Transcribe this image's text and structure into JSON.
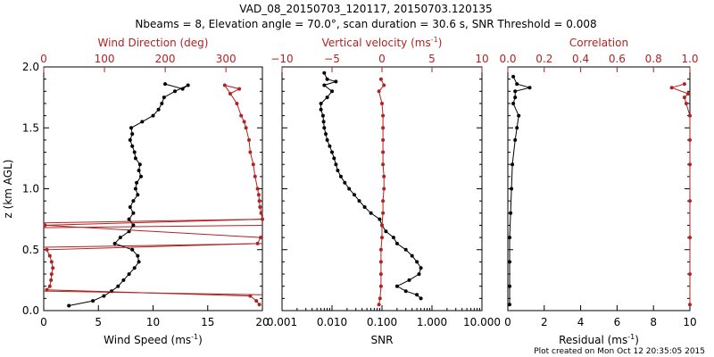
{
  "title": {
    "line1": "VAD_08_20150703_120117, 20150703.120135",
    "line2": "Nbeams = 8, Elevation angle = 70.0°, scan duration = 30.6 s, SNR Threshold = 0.008"
  },
  "footer": "Plot created on Mon Oct 12 20:35:05 2015",
  "colors": {
    "primary": "#000000",
    "secondary": "#b22222"
  },
  "chart_data": [
    {
      "type": "scatter",
      "panel": "wind",
      "ylabel": "z (km AGL)",
      "ylim": [
        0.0,
        2.0
      ],
      "yticks": [
        0.0,
        0.5,
        1.0,
        1.5,
        2.0
      ],
      "ytick_labels": [
        "0.0",
        "0.5",
        "1.0",
        "1.5",
        "2.0"
      ],
      "xlabel": "Wind Speed (ms",
      "xlabel_sup": "-1",
      "xlabel_tail": ")",
      "xlim": [
        0,
        20
      ],
      "xticks": [
        0,
        5,
        10,
        15,
        20
      ],
      "xtick_labels": [
        "0",
        "5",
        "10",
        "15",
        "20"
      ],
      "top_label": "Wind Direction (deg)",
      "top_lim": [
        0,
        360
      ],
      "top_ticks": [
        0,
        100,
        200,
        300
      ],
      "top_tick_labels": [
        "0",
        "100",
        "200",
        "300"
      ],
      "series": [
        {
          "name": "Wind Speed",
          "axis": "bottom",
          "color": "#000000",
          "points": [
            [
              2.3,
              0.04
            ],
            [
              4.5,
              0.08
            ],
            [
              5.5,
              0.12
            ],
            [
              6.2,
              0.16
            ],
            [
              6.8,
              0.2
            ],
            [
              7.3,
              0.25
            ],
            [
              7.8,
              0.3
            ],
            [
              8.3,
              0.35
            ],
            [
              8.7,
              0.4
            ],
            [
              8.6,
              0.45
            ],
            [
              8.1,
              0.5
            ],
            [
              6.5,
              0.55
            ],
            [
              7.0,
              0.6
            ],
            [
              7.8,
              0.65
            ],
            [
              8.2,
              0.7
            ],
            [
              7.8,
              0.75
            ],
            [
              8.2,
              0.8
            ],
            [
              7.9,
              0.85
            ],
            [
              8.2,
              0.9
            ],
            [
              8.6,
              0.95
            ],
            [
              8.4,
              1.0
            ],
            [
              8.5,
              1.05
            ],
            [
              8.9,
              1.1
            ],
            [
              8.7,
              1.15
            ],
            [
              8.8,
              1.2
            ],
            [
              8.4,
              1.25
            ],
            [
              8.3,
              1.3
            ],
            [
              8.1,
              1.35
            ],
            [
              7.9,
              1.4
            ],
            [
              8.1,
              1.45
            ],
            [
              8.0,
              1.5
            ],
            [
              9.0,
              1.55
            ],
            [
              10.0,
              1.6
            ],
            [
              10.5,
              1.65
            ],
            [
              10.8,
              1.7
            ],
            [
              11.0,
              1.75
            ],
            [
              12.0,
              1.8
            ],
            [
              13.2,
              1.85
            ],
            [
              12.7,
              1.82
            ],
            [
              11.1,
              1.86
            ]
          ]
        },
        {
          "name": "Wind Direction",
          "axis": "top",
          "color": "#b22222",
          "points": [
            [
              355,
              0.05
            ],
            [
              350,
              0.08
            ],
            [
              340,
              0.12
            ],
            [
              5,
              0.17
            ],
            [
              10,
              0.2
            ],
            [
              12,
              0.25
            ],
            [
              13,
              0.3
            ],
            [
              15,
              0.35
            ],
            [
              13,
              0.4
            ],
            [
              10,
              0.45
            ],
            [
              5,
              0.5
            ],
            [
              352,
              0.55
            ],
            [
              357,
              0.6
            ],
            [
              2,
              0.7
            ],
            [
              360,
              0.75
            ],
            [
              358,
              0.8
            ],
            [
              356,
              0.85
            ],
            [
              355,
              0.9
            ],
            [
              354,
              0.95
            ],
            [
              352,
              1.0
            ],
            [
              348,
              1.1
            ],
            [
              345,
              1.2
            ],
            [
              340,
              1.3
            ],
            [
              338,
              1.4
            ],
            [
              333,
              1.5
            ],
            [
              330,
              1.55
            ],
            [
              325,
              1.6
            ],
            [
              318,
              1.7
            ],
            [
              298,
              1.85
            ],
            [
              322,
              1.82
            ],
            [
              307,
              1.78
            ]
          ]
        }
      ],
      "wrap_lines": [
        [
          0.0,
          0.16,
          20.0,
          0.13
        ],
        [
          0.0,
          0.52,
          20.0,
          0.55
        ],
        [
          0.0,
          0.68,
          20.0,
          0.7
        ],
        [
          0.0,
          0.72,
          20.0,
          0.75
        ]
      ]
    },
    {
      "type": "scatter",
      "panel": "snr",
      "ylim": [
        0.0,
        2.0
      ],
      "xlabel": "SNR",
      "xscale": "log",
      "xlim": [
        0.001,
        10.0
      ],
      "xticks": [
        0.001,
        0.01,
        0.1,
        1.0,
        10.0
      ],
      "xtick_labels": [
        "0.001",
        "0.010",
        "0.100",
        "1.000",
        "10.000"
      ],
      "top_label": "Vertical velocity (ms",
      "top_label_sup": "-1",
      "top_label_tail": ")",
      "top_lim": [
        -10,
        10
      ],
      "top_ticks": [
        -10,
        -5,
        0,
        5,
        10
      ],
      "top_tick_labels": [
        "−10",
        "−5",
        "0",
        "5",
        "10"
      ],
      "series": [
        {
          "name": "SNR",
          "axis": "bottom",
          "color": "#000000",
          "points": [
            [
              0.6,
              0.1
            ],
            [
              0.5,
              0.13
            ],
            [
              0.3,
              0.16
            ],
            [
              0.2,
              0.2
            ],
            [
              0.35,
              0.25
            ],
            [
              0.55,
              0.3
            ],
            [
              0.6,
              0.35
            ],
            [
              0.5,
              0.4
            ],
            [
              0.4,
              0.45
            ],
            [
              0.3,
              0.5
            ],
            [
              0.2,
              0.55
            ],
            [
              0.17,
              0.6
            ],
            [
              0.12,
              0.65
            ],
            [
              0.1,
              0.7
            ],
            [
              0.09,
              0.75
            ],
            [
              0.06,
              0.8
            ],
            [
              0.045,
              0.85
            ],
            [
              0.035,
              0.9
            ],
            [
              0.028,
              0.95
            ],
            [
              0.022,
              1.0
            ],
            [
              0.018,
              1.05
            ],
            [
              0.015,
              1.1
            ],
            [
              0.013,
              1.15
            ],
            [
              0.012,
              1.2
            ],
            [
              0.011,
              1.25
            ],
            [
              0.01,
              1.3
            ],
            [
              0.009,
              1.35
            ],
            [
              0.008,
              1.4
            ],
            [
              0.0075,
              1.45
            ],
            [
              0.007,
              1.5
            ],
            [
              0.0068,
              1.55
            ],
            [
              0.0066,
              1.6
            ],
            [
              0.006,
              1.65
            ],
            [
              0.006,
              1.7
            ],
            [
              0.008,
              1.75
            ],
            [
              0.01,
              1.8
            ],
            [
              0.007,
              1.85
            ],
            [
              0.012,
              1.88
            ],
            [
              0.008,
              1.9
            ],
            [
              0.007,
              1.95
            ]
          ]
        },
        {
          "name": "Vertical velocity",
          "axis": "top",
          "color": "#b22222",
          "points": [
            [
              -0.3,
              0.05
            ],
            [
              -0.2,
              0.1
            ],
            [
              -0.1,
              0.2
            ],
            [
              -0.1,
              0.3
            ],
            [
              -0.1,
              0.4
            ],
            [
              -0.1,
              0.5
            ],
            [
              0.0,
              0.6
            ],
            [
              0.0,
              0.7
            ],
            [
              0.1,
              0.8
            ],
            [
              0.1,
              0.9
            ],
            [
              0.2,
              1.0
            ],
            [
              0.2,
              1.1
            ],
            [
              0.1,
              1.2
            ],
            [
              0.1,
              1.3
            ],
            [
              0.1,
              1.4
            ],
            [
              0.1,
              1.5
            ],
            [
              0.1,
              1.6
            ],
            [
              0.0,
              1.7
            ],
            [
              -0.3,
              1.8
            ],
            [
              0.2,
              1.85
            ],
            [
              -0.1,
              1.9
            ]
          ]
        }
      ]
    },
    {
      "type": "scatter",
      "panel": "residual",
      "ylim": [
        0.0,
        2.0
      ],
      "xlabel": "Residual (ms",
      "xlabel_sup": "-1",
      "xlabel_tail": ")",
      "xlim": [
        0,
        10
      ],
      "xticks": [
        0,
        2,
        4,
        6,
        8,
        10
      ],
      "xtick_labels": [
        "0",
        "2",
        "4",
        "6",
        "8",
        "10"
      ],
      "top_label": "Correlation",
      "top_lim": [
        0.0,
        1.0
      ],
      "top_ticks": [
        0.0,
        0.2,
        0.4,
        0.6,
        0.8,
        1.0
      ],
      "top_tick_labels": [
        "0.0",
        "0.2",
        "0.4",
        "0.6",
        "0.8",
        "1.0"
      ],
      "series": [
        {
          "name": "Residual",
          "axis": "bottom",
          "color": "#000000",
          "points": [
            [
              0.1,
              0.05
            ],
            [
              0.1,
              0.2
            ],
            [
              0.1,
              0.4
            ],
            [
              0.1,
              0.6
            ],
            [
              0.15,
              0.8
            ],
            [
              0.2,
              1.0
            ],
            [
              0.25,
              1.2
            ],
            [
              0.4,
              1.4
            ],
            [
              0.5,
              1.5
            ],
            [
              0.6,
              1.6
            ],
            [
              0.3,
              1.7
            ],
            [
              0.4,
              1.75
            ],
            [
              0.4,
              1.8
            ],
            [
              1.2,
              1.83
            ],
            [
              0.5,
              1.86
            ],
            [
              0.3,
              1.92
            ]
          ]
        },
        {
          "name": "Correlation",
          "axis": "top",
          "color": "#b22222",
          "points": [
            [
              1.0,
              0.05
            ],
            [
              1.0,
              0.3
            ],
            [
              1.0,
              0.6
            ],
            [
              1.0,
              0.9
            ],
            [
              1.0,
              1.2
            ],
            [
              1.0,
              1.4
            ],
            [
              1.0,
              1.6
            ],
            [
              0.98,
              1.7
            ],
            [
              0.97,
              1.75
            ],
            [
              0.99,
              1.78
            ],
            [
              0.9,
              1.83
            ],
            [
              0.97,
              1.86
            ]
          ]
        }
      ]
    }
  ]
}
